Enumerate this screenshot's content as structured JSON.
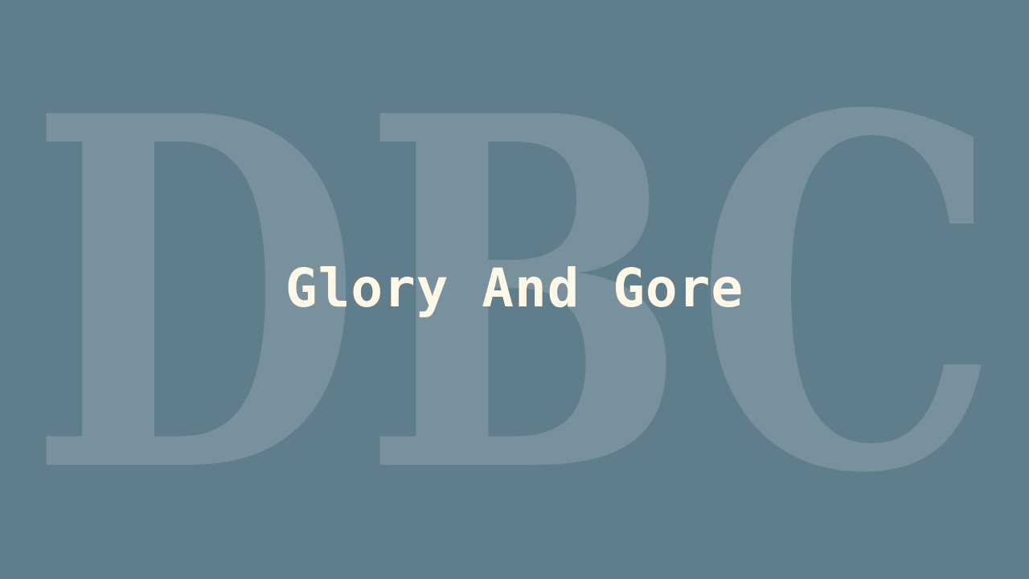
{
  "background": {
    "watermark_text": "DBC",
    "color": "#607d8b",
    "watermark_color": "#ffffff"
  },
  "title": {
    "text": "Glory And Gore",
    "color": "#fff8e6"
  }
}
